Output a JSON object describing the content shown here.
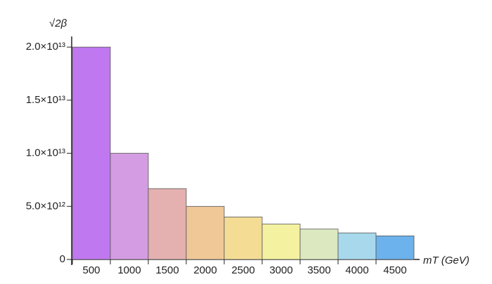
{
  "chart_data": {
    "type": "bar",
    "y_label": "√2β",
    "x_label": "mT (GeV)",
    "categories": [
      "500",
      "1000",
      "1500",
      "2000",
      "2500",
      "3000",
      "3500",
      "4000",
      "4500"
    ],
    "values": [
      20000000000000.0,
      10000000000000.0,
      6670000000000.0,
      5000000000000.0,
      4000000000000.0,
      3330000000000.0,
      2860000000000.0,
      2500000000000.0,
      2220000000000.0
    ],
    "colors": [
      "#c078f0",
      "#d49ce2",
      "#e4b0b0",
      "#f0c898",
      "#f4dc94",
      "#f4f1a0",
      "#dce9c0",
      "#a8d8ec",
      "#6cb2ec"
    ],
    "ylim": [
      0,
      21000000000000.0
    ],
    "yticks": [
      0,
      {
        "value": 5000000000000.0,
        "label": "5.0×10¹²"
      },
      {
        "value": 10000000000000.0,
        "label": "1.0×10¹³"
      },
      {
        "value": 15000000000000.0,
        "label": "1.5×10¹³"
      },
      {
        "value": 20000000000000.0,
        "label": "2.0×10¹³"
      }
    ]
  }
}
